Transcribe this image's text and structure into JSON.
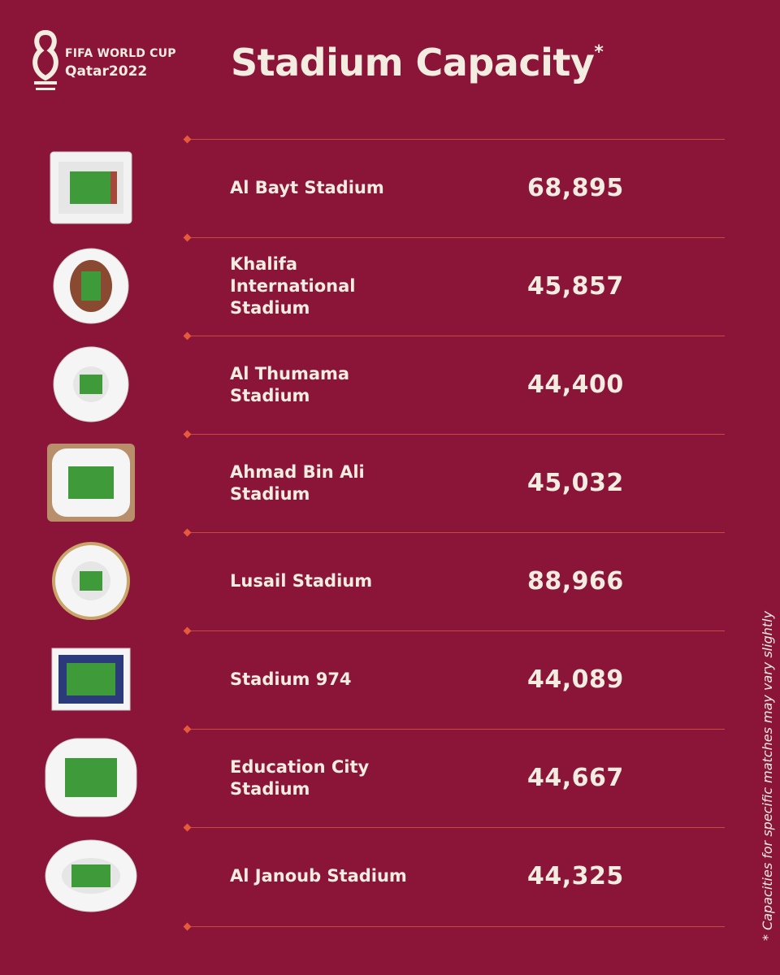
{
  "brand": {
    "line1": "FIFA WORLD CUP",
    "line2": "Qatar2022"
  },
  "title": "Stadium Capacity",
  "title_mark": "*",
  "stadiums": [
    {
      "name": "Al Bayt Stadium",
      "capacity": "68,895",
      "icon": "al-bayt-stadium-icon"
    },
    {
      "name": "Khalifa International Stadium",
      "capacity": "45,857",
      "icon": "khalifa-stadium-icon"
    },
    {
      "name": "Al Thumama Stadium",
      "capacity": "44,400",
      "icon": "al-thumama-stadium-icon"
    },
    {
      "name": "Ahmad Bin Ali Stadium",
      "capacity": "45,032",
      "icon": "ahmad-bin-ali-stadium-icon"
    },
    {
      "name": "Lusail Stadium",
      "capacity": "88,966",
      "icon": "lusail-stadium-icon"
    },
    {
      "name": "Stadium 974",
      "capacity": "44,089",
      "icon": "stadium-974-icon"
    },
    {
      "name": "Education City Stadium",
      "capacity": "44,667",
      "icon": "education-city-stadium-icon"
    },
    {
      "name": "Al Janoub Stadium",
      "capacity": "44,325",
      "icon": "al-janoub-stadium-icon"
    }
  ],
  "footnote": "* Capacities for specific matches may vary slightly",
  "colors": {
    "background": "#8a1538",
    "text": "#f3ece1",
    "rule": "#c84a3e",
    "accent": "#e45a3a"
  }
}
